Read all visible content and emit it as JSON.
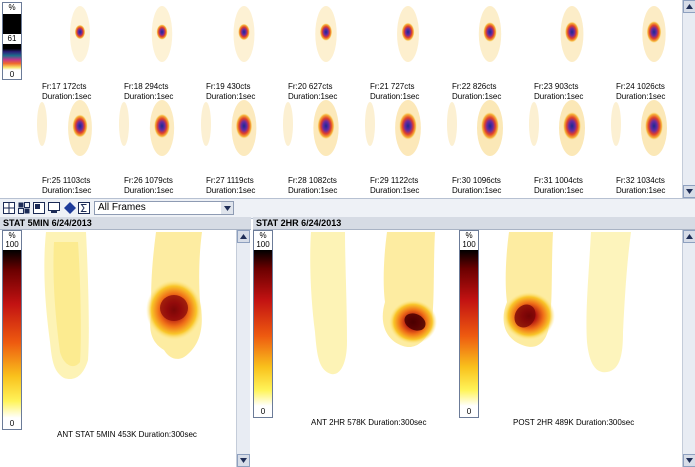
{
  "top_scale": {
    "top": "%",
    "mid": "61",
    "bottom": "0"
  },
  "frames": [
    {
      "name": "Fr:17 172cts",
      "duration": "Duration:1sec"
    },
    {
      "name": "Fr:18 294cts",
      "duration": "Duration:1sec"
    },
    {
      "name": "Fr:19 430cts",
      "duration": "Duration:1sec"
    },
    {
      "name": "Fr:20 627cts",
      "duration": "Duration:1sec"
    },
    {
      "name": "Fr:21 727cts",
      "duration": "Duration:1sec"
    },
    {
      "name": "Fr:22 826cts",
      "duration": "Duration:1sec"
    },
    {
      "name": "Fr:23 903cts",
      "duration": "Duration:1sec"
    },
    {
      "name": "Fr:24 1026cts",
      "duration": "Duration:1sec"
    },
    {
      "name": "Fr:25 1103cts",
      "duration": "Duration:1sec"
    },
    {
      "name": "Fr:26 1079cts",
      "duration": "Duration:1sec"
    },
    {
      "name": "Fr:27 1119cts",
      "duration": "Duration:1sec"
    },
    {
      "name": "Fr:28 1082cts",
      "duration": "Duration:1sec"
    },
    {
      "name": "Fr:29 1122cts",
      "duration": "Duration:1sec"
    },
    {
      "name": "Fr:30 1096cts",
      "duration": "Duration:1sec"
    },
    {
      "name": "Fr:31 1004cts",
      "duration": "Duration:1sec"
    },
    {
      "name": "Fr:32 1034cts",
      "duration": "Duration:1sec"
    }
  ],
  "toolbar": {
    "frames_select": "All Frames"
  },
  "left_panel": {
    "title": "STAT 5MIN 6/24/2013",
    "scale_top": "%",
    "scale_max": "100",
    "scale_min": "0",
    "caption": "ANT STAT 5MIN 453K Duration:300sec"
  },
  "right_panel": {
    "title": "STAT 2HR 6/24/2013",
    "scale1_top": "%",
    "scale1_max": "100",
    "scale1_min": "0",
    "scale2_top": "%",
    "scale2_max": "100",
    "scale2_min": "0",
    "caption_ant": "ANT 2HR 578K Duration:300sec",
    "caption_post": "POST 2HR 489K Duration:300sec"
  },
  "colors": {
    "rainbow": [
      "#000000",
      "#2a1f7a",
      "#1e6f8c",
      "#c3378c",
      "#f06a2a",
      "#f7e36a",
      "#ffffff"
    ],
    "heat": [
      "#000000",
      "#6b0000",
      "#c21212",
      "#ee5a10",
      "#f9c11c",
      "#fff45a",
      "#ffffff"
    ]
  }
}
